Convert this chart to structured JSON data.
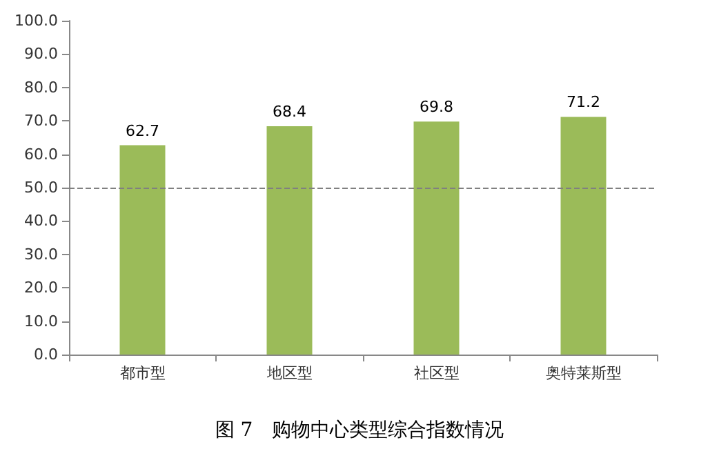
{
  "chart_data": {
    "type": "bar",
    "title": "图 7　购物中心类型综合指数情况",
    "categories": [
      "都市型",
      "地区型",
      "社区型",
      "奥特莱斯型"
    ],
    "values": [
      62.7,
      68.4,
      69.8,
      71.2
    ],
    "color": "#9bbb59",
    "ylim": [
      0,
      100
    ],
    "yticks": [
      {
        "value": 0,
        "label": "0.0"
      },
      {
        "value": 10,
        "label": "10.0"
      },
      {
        "value": 20,
        "label": "20.0"
      },
      {
        "value": 30,
        "label": "30.0"
      },
      {
        "value": 40,
        "label": "40.0"
      },
      {
        "value": 50,
        "label": "50.0"
      },
      {
        "value": 60,
        "label": "60.0"
      },
      {
        "value": 70,
        "label": "70.0"
      },
      {
        "value": 80,
        "label": "80.0"
      },
      {
        "value": 90,
        "label": "90.0"
      },
      {
        "value": 100,
        "label": "100.0"
      }
    ],
    "ref_lines": [
      {
        "axis": "y",
        "value": 50,
        "color": "#808080",
        "line_style": "dashed"
      }
    ],
    "data_labels": true
  }
}
